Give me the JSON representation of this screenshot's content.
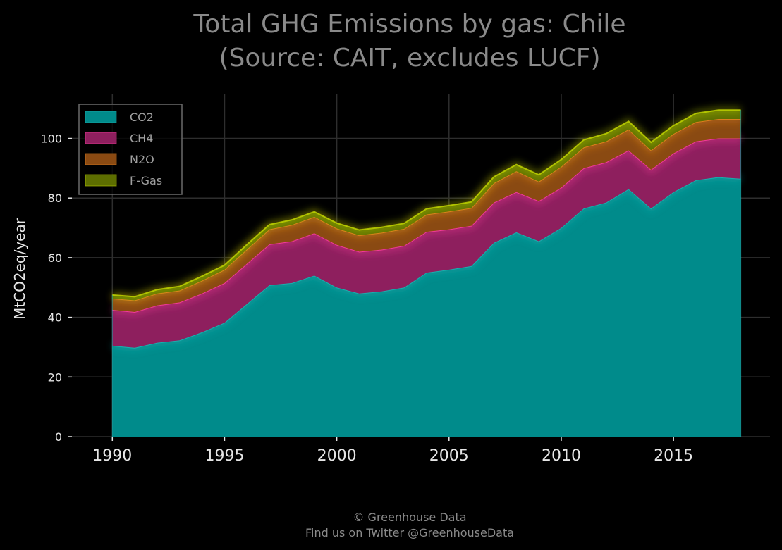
{
  "chart_data": {
    "type": "area",
    "stacked": true,
    "title": "Total GHG Emissions by gas: Chile",
    "subtitle": "(Source: CAIT, excludes LUCF)",
    "xlabel": "",
    "ylabel": "MtCO2eq/year",
    "x": [
      1990,
      1991,
      1992,
      1993,
      1994,
      1995,
      1996,
      1997,
      1998,
      1999,
      2000,
      2001,
      2002,
      2003,
      2004,
      2005,
      2006,
      2007,
      2008,
      2009,
      2010,
      2011,
      2012,
      2013,
      2014,
      2015,
      2016,
      2017,
      2018
    ],
    "xticks": [
      1990,
      1995,
      2000,
      2005,
      2010,
      2015
    ],
    "yticks": [
      0,
      20,
      40,
      60,
      80,
      100
    ],
    "xlim": [
      1988.2,
      2019.3
    ],
    "ylim": [
      0,
      115
    ],
    "grid": true,
    "legend_position": "top-left",
    "series": [
      {
        "name": "CO2",
        "color": "#008b8b",
        "line_color": "#1fb3b3",
        "values": [
          30.5,
          29.8,
          31.5,
          32.3,
          35.0,
          38.2,
          44.5,
          50.8,
          51.5,
          54.0,
          50.0,
          48.0,
          48.7,
          50.0,
          55.0,
          56.0,
          57.2,
          65.0,
          68.5,
          65.5,
          70.0,
          76.5,
          78.5,
          83.0,
          76.5,
          82.0,
          86.0,
          87.0,
          86.5
        ]
      },
      {
        "name": "CH4",
        "color": "#8e1f5e",
        "line_color": "#ff3fa0",
        "values": [
          12.0,
          12.0,
          12.5,
          12.7,
          13.0,
          13.3,
          13.5,
          13.7,
          14.0,
          14.2,
          14.3,
          14.0,
          14.0,
          14.0,
          13.7,
          13.5,
          13.5,
          13.5,
          13.5,
          13.5,
          13.5,
          13.5,
          13.5,
          13.0,
          13.0,
          13.0,
          13.0,
          13.0,
          13.5
        ]
      },
      {
        "name": "N2O",
        "color": "#8a4a12",
        "line_color": "#e8831f",
        "values": [
          3.8,
          3.9,
          4.0,
          4.0,
          4.3,
          4.5,
          4.8,
          5.0,
          5.5,
          5.5,
          5.5,
          5.5,
          5.7,
          5.7,
          5.8,
          6.0,
          6.0,
          6.5,
          7.0,
          6.5,
          7.0,
          7.0,
          7.0,
          7.0,
          6.5,
          6.5,
          6.5,
          6.5,
          6.5
        ]
      },
      {
        "name": "F-Gas",
        "color": "#5d6e00",
        "line_color": "#c0d400",
        "values": [
          1.2,
          1.2,
          1.3,
          1.4,
          1.5,
          1.5,
          1.6,
          1.6,
          1.7,
          1.7,
          1.8,
          1.8,
          1.8,
          1.8,
          1.9,
          2.0,
          2.0,
          2.1,
          2.2,
          2.3,
          2.4,
          2.5,
          2.6,
          2.7,
          2.7,
          2.8,
          2.9,
          3.0,
          3.0
        ]
      }
    ]
  },
  "footer": {
    "line1": "© Greenhouse Data",
    "line2": "Find us on Twitter @GreenhouseData"
  },
  "colors": {
    "background": "#000000",
    "grid": "#2e2e2e",
    "title": "#8a8a8a",
    "tick": "#e6e6e6",
    "legend_text": "#a0a0a0",
    "legend_border": "#6a6a6a"
  }
}
